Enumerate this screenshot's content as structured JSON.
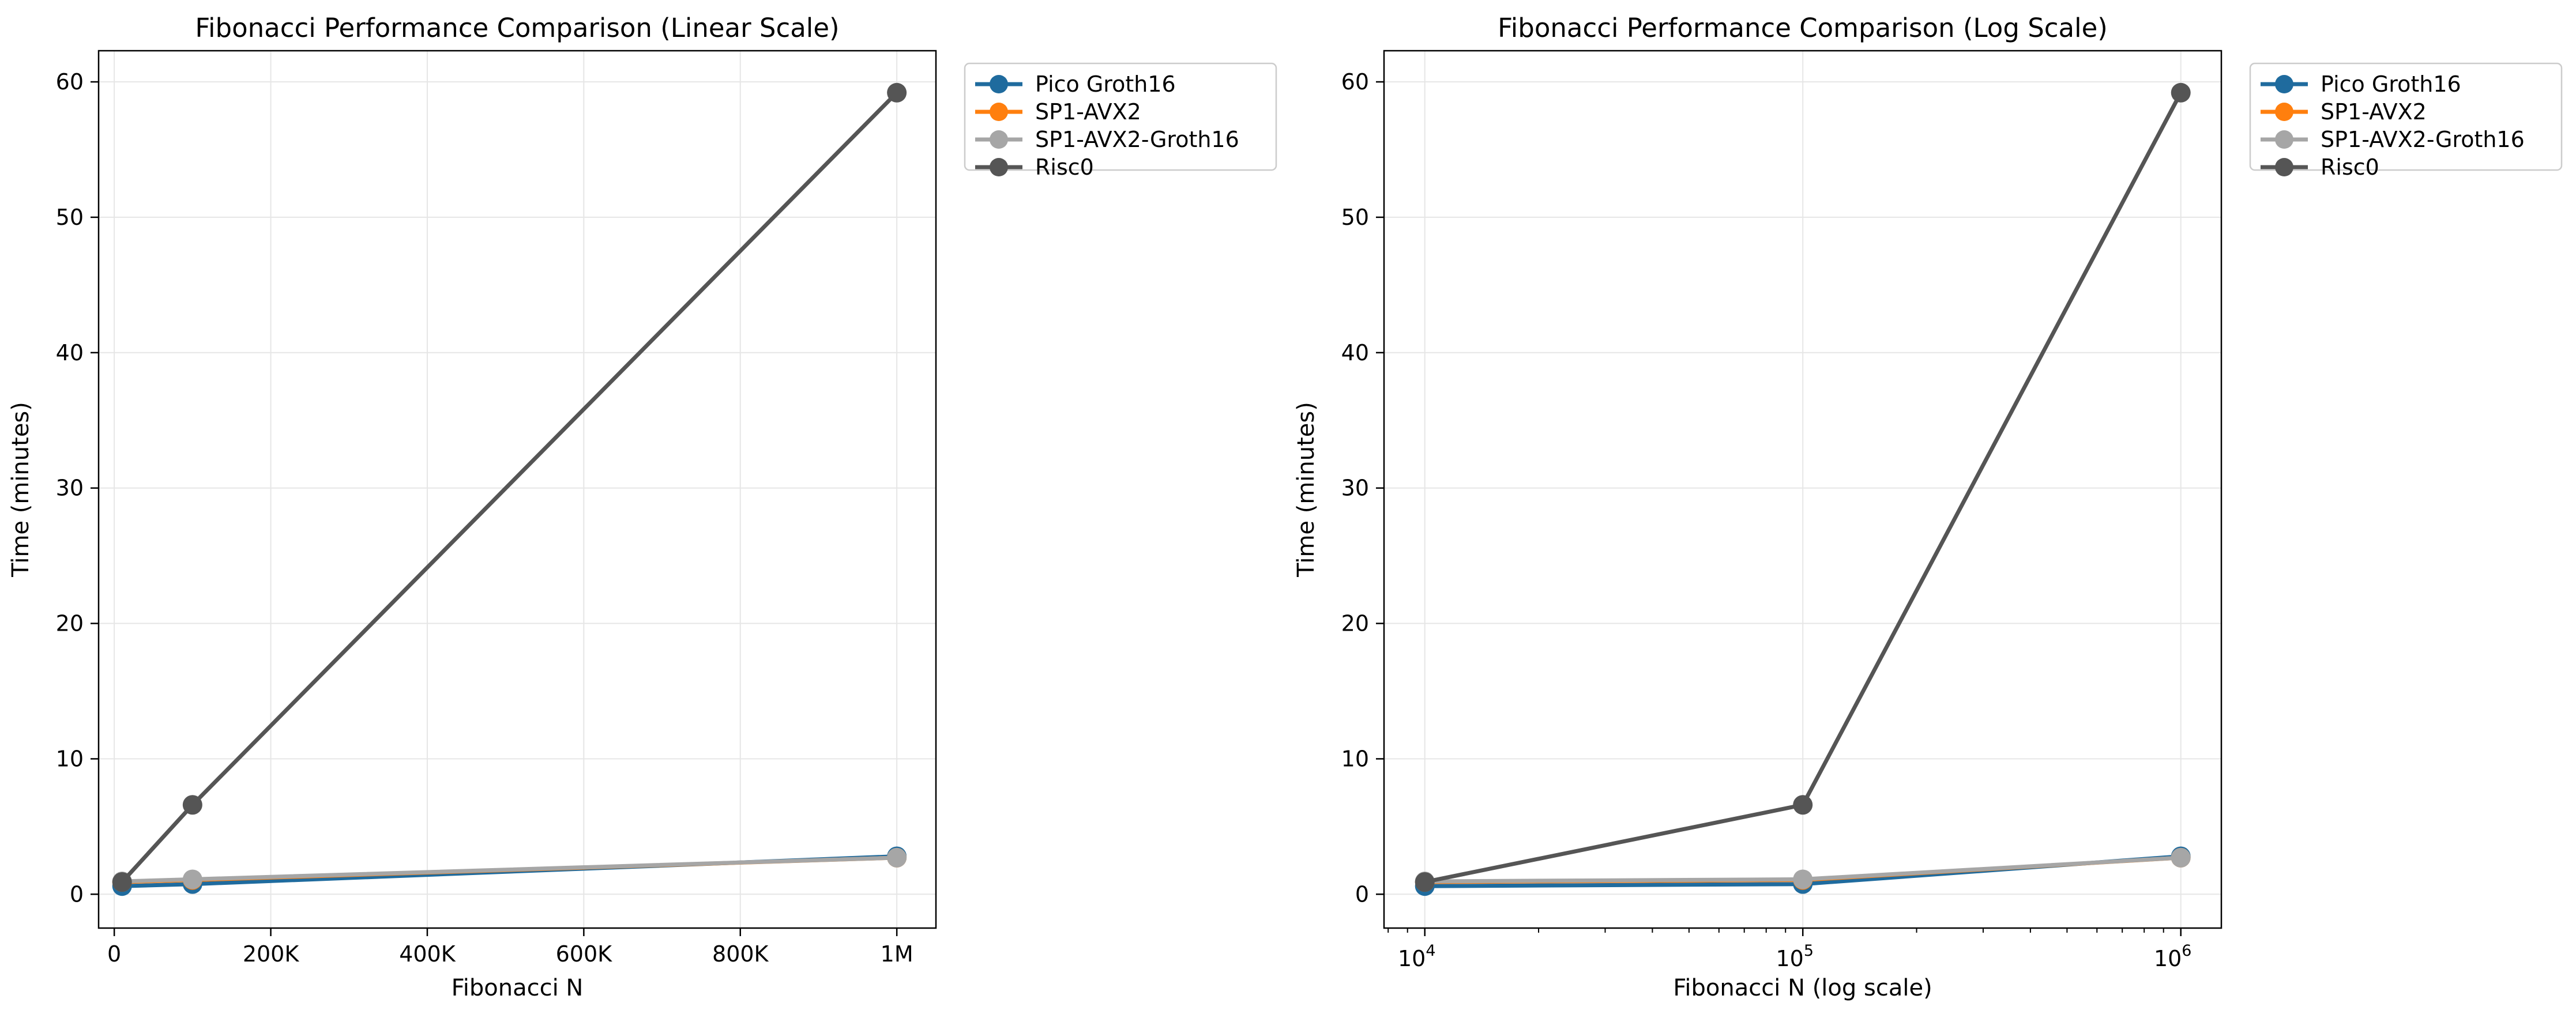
{
  "colors": {
    "pico_groth16": "#1f6b9e",
    "sp1_avx2": "#ff7f0e",
    "sp1_avx2_groth16": "#a6a6a6",
    "risc0": "#555555",
    "grid": "#e6e6e6",
    "axis": "#000000"
  },
  "chart_data": [
    {
      "type": "line",
      "title": "Fibonacci Performance Comparison (Linear Scale)",
      "xlabel": "Fibonacci N",
      "ylabel": "Time (minutes)",
      "xscale": "linear",
      "xlim": [
        -20000,
        1050000
      ],
      "ylim": [
        -2.5,
        62.3
      ],
      "xticks": [
        0,
        200000,
        400000,
        600000,
        800000,
        1000000
      ],
      "xtick_labels": [
        "0",
        "200K",
        "400K",
        "600K",
        "800K",
        "1M"
      ],
      "yticks": [
        0,
        10,
        20,
        30,
        40,
        50,
        60
      ],
      "ytick_labels": [
        "0",
        "10",
        "20",
        "30",
        "40",
        "50",
        "60"
      ],
      "grid": true,
      "legend": "outside-top-right",
      "x": [
        10000,
        100000,
        1000000
      ],
      "series": [
        {
          "name": "Pico Groth16",
          "values": [
            0.6,
            0.75,
            2.8
          ]
        },
        {
          "name": "SP1-AVX2",
          "values": [
            0.9,
            1.05,
            2.7
          ]
        },
        {
          "name": "SP1-AVX2-Groth16",
          "values": [
            0.95,
            1.1,
            2.7
          ]
        },
        {
          "name": "Risc0",
          "values": [
            0.9,
            6.6,
            59.2
          ]
        }
      ]
    },
    {
      "type": "line",
      "title": "Fibonacci Performance Comparison (Log Scale)",
      "xlabel": "Fibonacci N (log scale)",
      "ylabel": "Time (minutes)",
      "xscale": "log",
      "xlim": [
        7800,
        1280000
      ],
      "ylim": [
        -2.5,
        62.3
      ],
      "xticks": [
        10000,
        100000,
        1000000
      ],
      "xtick_labels": [
        {
          "base": "10",
          "exp": "4"
        },
        {
          "base": "10",
          "exp": "5"
        },
        {
          "base": "10",
          "exp": "6"
        }
      ],
      "yticks": [
        0,
        10,
        20,
        30,
        40,
        50,
        60
      ],
      "ytick_labels": [
        "0",
        "10",
        "20",
        "30",
        "40",
        "50",
        "60"
      ],
      "grid": true,
      "legend": "outside-top-right",
      "x": [
        10000,
        100000,
        1000000
      ],
      "series": [
        {
          "name": "Pico Groth16",
          "values": [
            0.6,
            0.75,
            2.8
          ]
        },
        {
          "name": "SP1-AVX2",
          "values": [
            0.9,
            1.05,
            2.7
          ]
        },
        {
          "name": "SP1-AVX2-Groth16",
          "values": [
            0.95,
            1.1,
            2.7
          ]
        },
        {
          "name": "Risc0",
          "values": [
            0.9,
            6.6,
            59.2
          ]
        }
      ]
    }
  ]
}
